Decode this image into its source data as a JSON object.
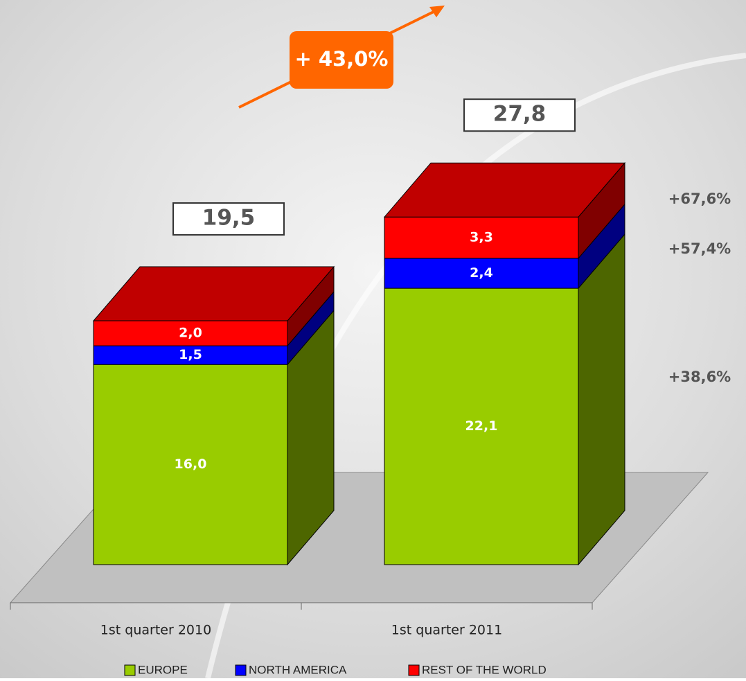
{
  "chart_data": {
    "type": "stacked-bar-3d",
    "categories": [
      "1st quarter 2010",
      "1st quarter 2011"
    ],
    "series": [
      {
        "name": "EUROPE",
        "color": "#99cc00",
        "side_color": "#4d6600",
        "values": [
          16.0,
          22.1
        ],
        "value_labels": [
          "16,0",
          "22,1"
        ],
        "change_label": "+38,6%"
      },
      {
        "name": "NORTH AMERICA",
        "color": "#0000ff",
        "side_color": "#000080",
        "values": [
          1.5,
          2.4
        ],
        "value_labels": [
          "1,5",
          "2,4"
        ],
        "change_label": "+57,4%"
      },
      {
        "name": "REST OF THE WORLD",
        "color": "#ff0000",
        "side_color": "#800000",
        "top_color": "#c00000",
        "values": [
          2.0,
          3.3
        ],
        "value_labels": [
          "2,0",
          "3,3"
        ],
        "change_label": "+67,6%"
      }
    ],
    "totals": [
      19.5,
      27.8
    ],
    "total_labels": [
      "19,5",
      "27,8"
    ],
    "growth_label": "+ 43,0%",
    "growth_color": "#ff6600"
  }
}
